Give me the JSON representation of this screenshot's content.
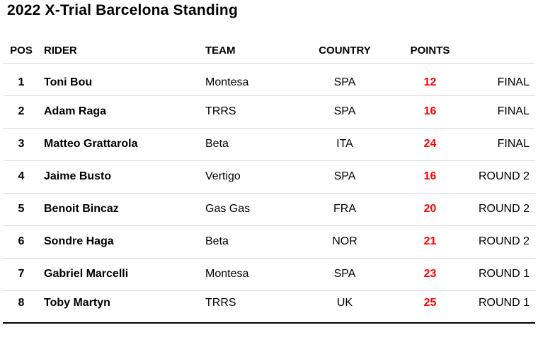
{
  "title": "2022 X-Trial Barcelona Standing",
  "chart_data": {
    "type": "table",
    "title": "2022 X-Trial Barcelona Standing",
    "columns": [
      "POS",
      "RIDER",
      "TEAM",
      "COUNTRY",
      "POINTS",
      ""
    ],
    "rows": [
      {
        "pos": "1",
        "rider": "Toni Bou",
        "team": "Montesa",
        "country": "SPA",
        "points": "12",
        "stage": "FINAL"
      },
      {
        "pos": "2",
        "rider": "Adam Raga",
        "team": "TRRS",
        "country": "SPA",
        "points": "16",
        "stage": "FINAL"
      },
      {
        "pos": "3",
        "rider": "Matteo Grattarola",
        "team": "Beta",
        "country": "ITA",
        "points": "24",
        "stage": "FINAL"
      },
      {
        "pos": "4",
        "rider": "Jaime Busto",
        "team": "Vertigo",
        "country": "SPA",
        "points": "16",
        "stage": "ROUND 2"
      },
      {
        "pos": "5",
        "rider": "Benoit Bincaz",
        "team": "Gas Gas",
        "country": "FRA",
        "points": "20",
        "stage": "ROUND 2"
      },
      {
        "pos": "6",
        "rider": "Sondre Haga",
        "team": "Beta",
        "country": "NOR",
        "points": "21",
        "stage": "ROUND 2"
      },
      {
        "pos": "7",
        "rider": "Gabriel Marcelli",
        "team": "Montesa",
        "country": "SPA",
        "points": "23",
        "stage": "ROUND 1"
      },
      {
        "pos": "8",
        "rider": "Toby Martyn",
        "team": "TRRS",
        "country": "UK",
        "points": "25",
        "stage": "ROUND 1"
      }
    ]
  },
  "colors": {
    "points_text": "#ff0000",
    "row_separator": "#d9d9d9",
    "bottom_rule": "#000000",
    "text": "#000000",
    "background": "#ffffff"
  }
}
